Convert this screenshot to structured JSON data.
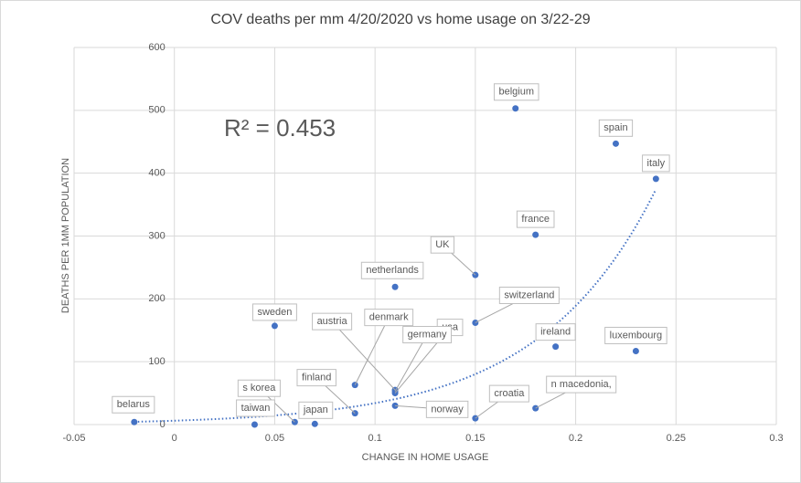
{
  "chart_data": {
    "type": "scatter",
    "title": "COV deaths per mm  4/20/2020 vs home usage on 3/22-29",
    "x_label": "CHANGE  IN HOME USAGE",
    "y_label": "DEATHS PER 1MM POPULATION",
    "annotation": "R² = 0.453",
    "color": "#4472c4",
    "trendline": "exponential",
    "grid": true,
    "point_labels": [
      "belgium",
      "spain",
      "italy",
      "france",
      "UK",
      "netherlands",
      "switzerland",
      "ireland",
      "luxembourg",
      "sweden",
      "austria",
      "denmark",
      "usa",
      "germany",
      "norway",
      "finland",
      "s korea",
      "japan",
      "taiwan",
      "belarus",
      "croatia",
      "n macedonia,"
    ],
    "x": [
      0.17,
      0.22,
      0.24,
      0.18,
      0.15,
      0.11,
      0.15,
      0.19,
      0.23,
      0.05,
      0.11,
      0.09,
      0.11,
      0.11,
      0.11,
      0.09,
      0.06,
      0.07,
      0.04,
      -0.02,
      0.15,
      0.18
    ],
    "values": [
      503,
      447,
      391,
      302,
      238,
      219,
      162,
      124,
      117,
      157,
      55,
      63,
      50,
      53,
      30,
      18,
      4,
      1,
      0,
      4,
      10,
      26
    ],
    "xlim": [
      -0.05,
      0.3
    ],
    "xticks": [
      -0.05,
      0,
      0.05,
      0.1,
      0.15,
      0.2,
      0.25,
      0.3
    ],
    "ylim": [
      0,
      600
    ],
    "yticks": [
      0,
      100,
      200,
      300,
      400,
      500,
      600
    ]
  }
}
